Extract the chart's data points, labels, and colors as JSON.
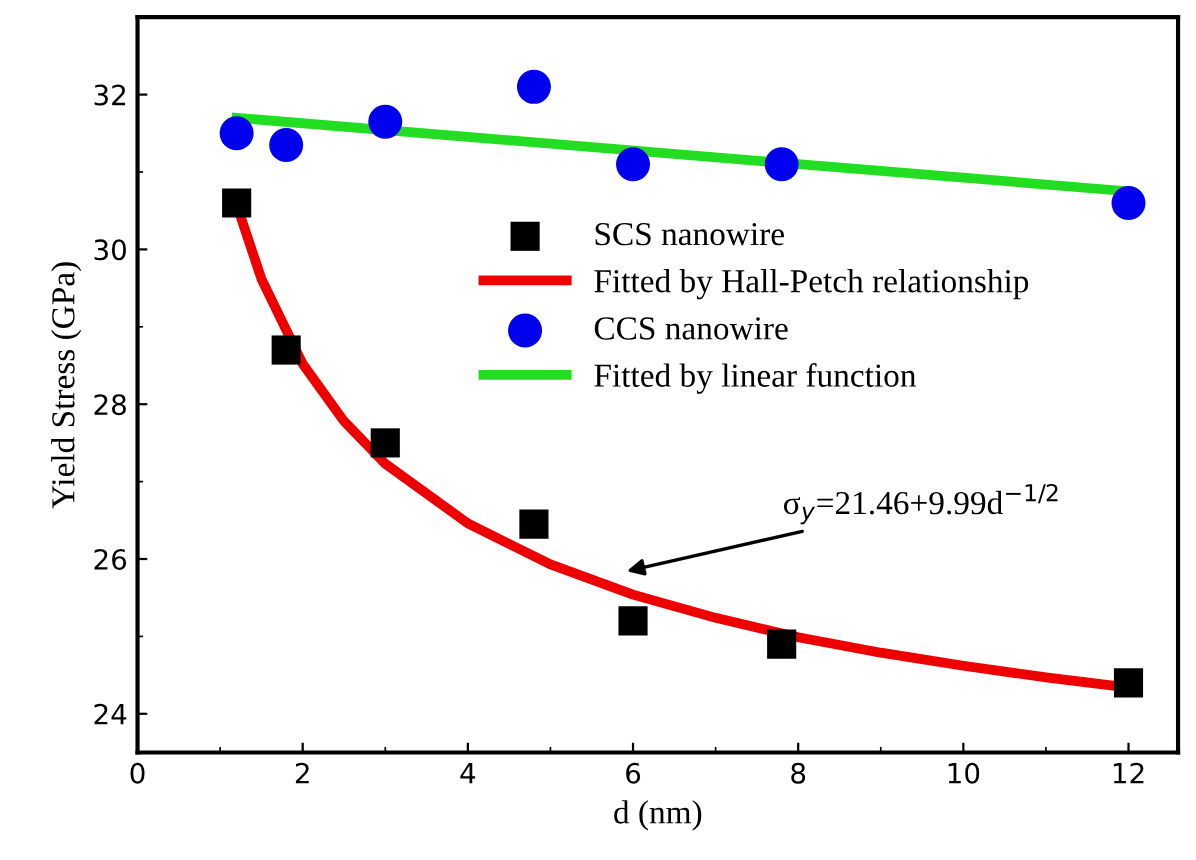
{
  "chart_data": {
    "type": "scatter",
    "xlabel": "d (nm)",
    "ylabel": "Yield Stress (GPa)",
    "xlim": [
      0,
      12.6
    ],
    "ylim": [
      23.5,
      33
    ],
    "xticks": [
      0,
      2,
      4,
      6,
      8,
      10,
      12
    ],
    "yticks": [
      24,
      26,
      28,
      30,
      32
    ],
    "grid": false,
    "legend": "top right",
    "series": [
      {
        "name": "SCS nanowire",
        "marker": "square",
        "color": "#000000",
        "x": [
          1.2,
          1.8,
          3,
          4.8,
          6,
          7.8,
          12
        ],
        "values": [
          30.6,
          28.7,
          27.5,
          26.45,
          25.2,
          24.9,
          24.4
        ]
      },
      {
        "name": "Fitted by Hall-Petch relationship",
        "type": "line",
        "marker": "none",
        "color": "#ee0000",
        "x": [
          1.2,
          1.5,
          2,
          2.5,
          3,
          4,
          5,
          6,
          7,
          8,
          9,
          10,
          11,
          12
        ],
        "values": [
          30.58,
          29.62,
          28.52,
          27.78,
          27.23,
          26.46,
          25.93,
          25.54,
          25.24,
          24.99,
          24.79,
          24.62,
          24.47,
          24.34
        ]
      },
      {
        "name": "CCS nanowire",
        "marker": "circle",
        "color": "#0000ee",
        "x": [
          1.2,
          1.8,
          3,
          4.8,
          6,
          7.8,
          12
        ],
        "values": [
          31.5,
          31.35,
          31.65,
          32.1,
          31.1,
          31.1,
          30.6
        ]
      },
      {
        "name": "Fitted by linear function",
        "type": "line",
        "marker": "none",
        "color": "#22dd22",
        "x": [
          1.2,
          12
        ],
        "values": [
          31.7,
          30.75
        ]
      }
    ],
    "annotations": [
      "σ$_{y}$=21.46+9.99d$^{−1/2}$"
    ]
  }
}
